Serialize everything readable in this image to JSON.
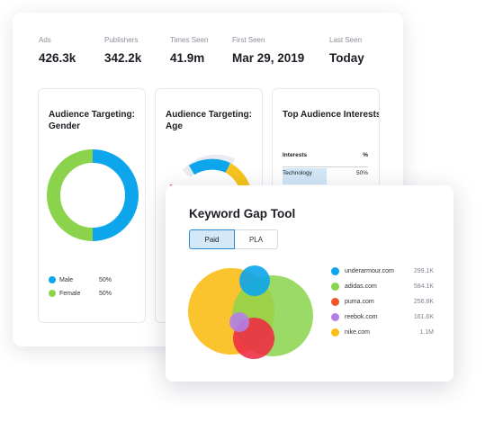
{
  "stats": [
    {
      "label": "Ads",
      "value": "426.3k"
    },
    {
      "label": "Publishers",
      "value": "342.2k"
    },
    {
      "label": "Times Seen",
      "value": "41.9m"
    },
    {
      "label": "First Seen",
      "value": "Mar 29, 2019"
    },
    {
      "label": "Last Seen",
      "value": "Today"
    }
  ],
  "gender_panel": {
    "title": "Audience Targeting: Gender",
    "legend": [
      {
        "name": "Male",
        "pct": "50%",
        "color": "#0da5ec"
      },
      {
        "name": "Female",
        "pct": "50%",
        "color": "#8bd34c"
      }
    ]
  },
  "age_panel": {
    "title": "Audience Targeting: Age",
    "colors": [
      "#0da5ec",
      "#f7c51d",
      "#e8ecf0",
      "#ee3a4a"
    ]
  },
  "interests_panel": {
    "title": "Top Audience Interests",
    "col_interests": "Interests",
    "col_pct": "%",
    "rows": [
      {
        "name": "Technology",
        "pct": "50%"
      }
    ]
  },
  "keyword_gap": {
    "title": "Keyword Gap Tool",
    "tabs": [
      "Paid",
      "PLA"
    ],
    "active_tab": "Paid",
    "domains": [
      {
        "domain": "underarmour.com",
        "count": "299.1K",
        "color": "#0da5ec"
      },
      {
        "domain": "adidas.com",
        "count": "584.1K",
        "color": "#8bd34c"
      },
      {
        "domain": "puma.com",
        "count": "256.8K",
        "color": "#f2572c"
      },
      {
        "domain": "reebok.com",
        "count": "161.6K",
        "color": "#b47ee5"
      },
      {
        "domain": "nike.com",
        "count": "1.1M",
        "color": "#fbbd17"
      }
    ]
  }
}
